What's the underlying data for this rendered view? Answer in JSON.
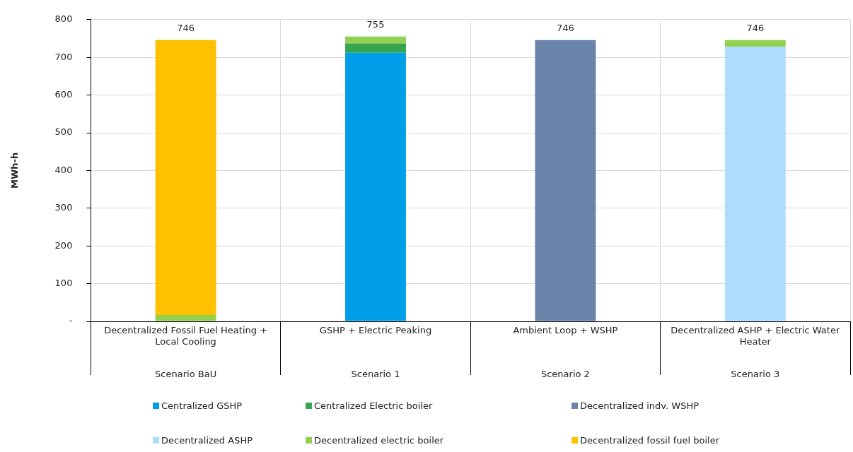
{
  "chart_data": {
    "type": "bar",
    "stacked": true,
    "ylabel": "MWh-h",
    "categories": [
      "Decentralized Fossil Fuel Heating + Local Cooling",
      "GSHP + Electric Peaking",
      "Ambient Loop + WSHP",
      "Decentralized ASHP + Electric Water Heater"
    ],
    "series": [
      {
        "name": "Centralized GSHP",
        "color": "#009ee8",
        "values": [
          null,
          712,
          null,
          null
        ]
      },
      {
        "name": "Centralized Electric boiler",
        "color": "#36a550",
        "values": [
          null,
          25,
          null,
          null
        ]
      },
      {
        "name": "Decentralized indv. WSHP",
        "color": "#6a83a8",
        "values": [
          null,
          null,
          746,
          null
        ]
      },
      {
        "name": "Decentralized ASHP",
        "color": "#addcfc",
        "values": [
          null,
          null,
          null,
          728
        ]
      },
      {
        "name": "Decentralized electric boiler",
        "color": "#92d050",
        "values": [
          17,
          18,
          null,
          18
        ]
      },
      {
        "name": "Decentralized fossil fuel boiler",
        "color": "#ffc000",
        "values": [
          729,
          null,
          null,
          null
        ]
      }
    ],
    "ylim": [
      0,
      800
    ],
    "yticks": [
      {
        "value": 0,
        "label": "-"
      },
      100,
      200,
      300,
      400,
      500,
      600,
      700,
      800
    ],
    "grid": true,
    "legend": "bottom",
    "totals": [
      "746",
      "755",
      "746",
      "746"
    ],
    "annotations": [
      "Scenario BaU",
      "Scenario 1",
      "Scenario 2",
      "Scenario 3"
    ]
  }
}
